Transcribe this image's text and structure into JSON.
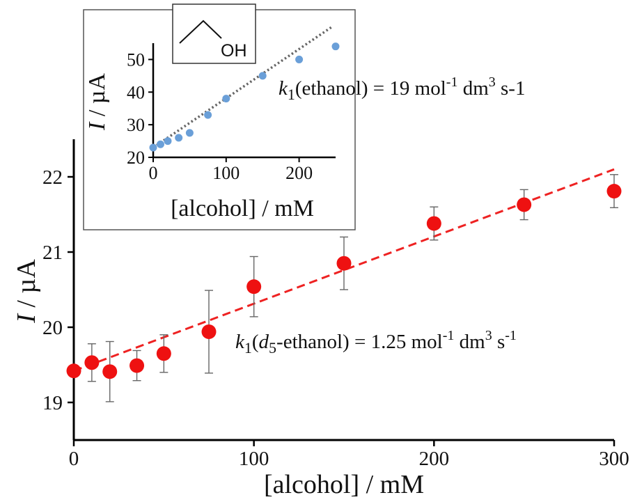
{
  "chart_data": [
    {
      "type": "scatter",
      "role": "main",
      "xlabel": "[alcohol] / mM",
      "ylabel": "I / µA",
      "ylabel_italic_part": "I",
      "ylabel_rest": " / µA",
      "xlim": [
        0,
        300
      ],
      "ylim": [
        18.5,
        22.5
      ],
      "x_ticks": [
        0,
        100,
        200,
        300
      ],
      "y_ticks": [
        19,
        20,
        21,
        22
      ],
      "grid": false,
      "series": [
        {
          "x": [
            0,
            10,
            20,
            35,
            50,
            75,
            100,
            150,
            200,
            250,
            300
          ],
          "y": [
            19.42,
            19.53,
            19.41,
            19.49,
            19.65,
            19.94,
            20.54,
            20.85,
            21.38,
            21.63,
            21.81
          ],
          "err": [
            0.0,
            0.25,
            0.4,
            0.2,
            0.25,
            0.55,
            0.4,
            0.35,
            0.22,
            0.2,
            0.22
          ],
          "color": "#ee1111"
        }
      ],
      "fit": {
        "x": [
          0,
          300
        ],
        "y": [
          19.42,
          22.1
        ],
        "color": "#ee2222",
        "style": "dashed"
      },
      "annotation": {
        "k": "k",
        "sub": "1",
        "open": "(",
        "d_italic": "d",
        "d_sub": "5",
        "species": "-ethanol) = 1.25 mol",
        "exp1": "-1",
        "mid": " dm",
        "exp2": "3",
        "tail": " s",
        "exp3": "-1"
      }
    },
    {
      "type": "scatter",
      "role": "inset",
      "xlabel": "[alcohol] / mM",
      "ylabel_italic_part": "I",
      "ylabel_rest": " / µA",
      "xlim": [
        0,
        250
      ],
      "ylim": [
        20,
        55
      ],
      "x_ticks": [
        0,
        100,
        200
      ],
      "y_ticks": [
        20,
        30,
        40,
        50
      ],
      "grid": false,
      "series": [
        {
          "x": [
            0,
            10,
            20,
            35,
            50,
            75,
            100,
            150,
            200,
            250
          ],
          "y": [
            23,
            24,
            25,
            26,
            27.5,
            33,
            38,
            45,
            50,
            54
          ],
          "color": "#6a9fd8"
        }
      ],
      "fit": {
        "x": [
          0,
          245
        ],
        "y": [
          23,
          60
        ],
        "color": "#666666",
        "style": "dotted"
      },
      "annotation": {
        "k": "k",
        "sub": "1",
        "species": "(ethanol) = 19 mol",
        "exp1": "-1",
        "mid": " dm",
        "exp2": "3",
        "tail": " s-1"
      },
      "structure": {
        "label": "OH"
      }
    }
  ]
}
